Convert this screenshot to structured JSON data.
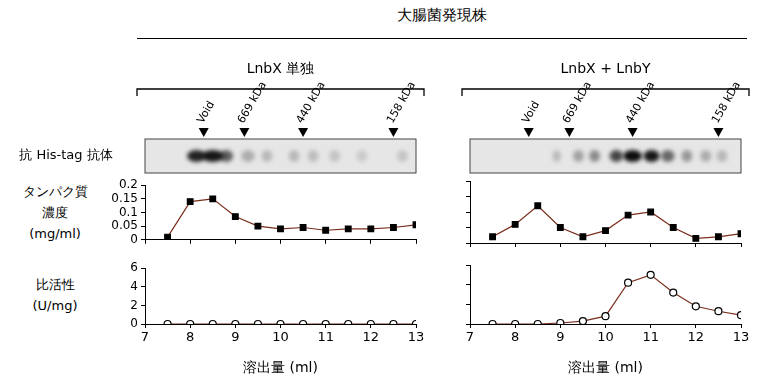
{
  "title": "大腸菌発現株",
  "blot_label": "抗 His-tag 抗体",
  "panels": [
    {
      "title": "LnbX 単独",
      "markers": [
        {
          "label": "Void",
          "x": 8.3
        },
        {
          "label": "669 kDa",
          "x": 9.2
        },
        {
          "label": "440 kDa",
          "x": 10.5
        },
        {
          "label": "158 kDa",
          "x": 12.5
        }
      ]
    },
    {
      "title": "LnbX + LnbY",
      "markers": [
        {
          "label": "Void",
          "x": 8.3
        },
        {
          "label": "669 kDa",
          "x": 9.2
        },
        {
          "label": "440 kDa",
          "x": 10.6
        },
        {
          "label": "158 kDa",
          "x": 12.5
        }
      ]
    }
  ],
  "chart_data": [
    {
      "type": "line",
      "ylabel": "タンパク質\n濃度\n(mg/ml)",
      "x": [
        7.5,
        8,
        8.5,
        9,
        9.5,
        10,
        10.5,
        11,
        11.5,
        12,
        12.5,
        13
      ],
      "values": [
        0.01,
        0.14,
        0.15,
        0.085,
        0.05,
        0.04,
        0.045,
        0.035,
        0.04,
        0.04,
        0.045,
        0.055
      ],
      "color": "#7a2e1d",
      "marker": "square",
      "xlim": [
        7,
        13
      ],
      "xticks": [
        7,
        8,
        9,
        10,
        11,
        12,
        13
      ],
      "ylim": [
        0,
        0.2
      ],
      "yticks": [
        0,
        0.05,
        0.1,
        0.15,
        0.2
      ],
      "grid": false,
      "tick_labels": "y"
    },
    {
      "type": "line",
      "ylabel": "比活性\n(U/mg)",
      "xlabel": "溶出量 (ml)",
      "x": [
        7.5,
        8,
        8.5,
        9,
        9.5,
        10,
        10.5,
        11,
        11.5,
        12,
        12.5,
        13
      ],
      "values": [
        0,
        0,
        0,
        0,
        0,
        0,
        0,
        0,
        0,
        0,
        0,
        0
      ],
      "color": "#7a2e1d",
      "marker": "open_circle",
      "xlim": [
        7,
        13
      ],
      "xticks": [
        7,
        8,
        9,
        10,
        11,
        12,
        13
      ],
      "ylim": [
        0,
        6
      ],
      "yticks": [
        0,
        2,
        4,
        6
      ],
      "grid": false,
      "tick_labels": true
    },
    {
      "type": "line",
      "x": [
        7.5,
        8,
        8.5,
        9,
        9.5,
        10,
        10.5,
        11,
        11.5,
        12,
        12.5,
        13
      ],
      "values": [
        0.02,
        0.06,
        0.12,
        0.05,
        0.02,
        0.04,
        0.09,
        0.1,
        0.05,
        0.015,
        0.02,
        0.03
      ],
      "color": "#7a2e1d",
      "marker": "square",
      "xlim": [
        7,
        13
      ],
      "xticks": [
        7,
        8,
        9,
        10,
        11,
        12,
        13
      ],
      "ylim": [
        0,
        0.2
      ],
      "yticks": [
        0,
        0.05,
        0.1,
        0.15,
        0.2
      ],
      "grid": false,
      "tick_labels": false
    },
    {
      "type": "line",
      "xlabel": "溶出量 (ml)",
      "x": [
        7.5,
        8,
        8.5,
        9,
        9.5,
        10,
        10.5,
        11,
        11.5,
        12,
        12.5,
        13
      ],
      "values": [
        0,
        0,
        0,
        0.1,
        0.3,
        0.8,
        4.2,
        5,
        3.2,
        1.8,
        1.3,
        0.9
      ],
      "color": "#7a2e1d",
      "marker": "open_circle",
      "xlim": [
        7,
        13
      ],
      "xticks": [
        7,
        8,
        9,
        10,
        11,
        12,
        13
      ],
      "ylim": [
        0,
        6
      ],
      "yticks": [
        0,
        2,
        4,
        6
      ],
      "grid": false,
      "tick_labels": "x"
    }
  ]
}
